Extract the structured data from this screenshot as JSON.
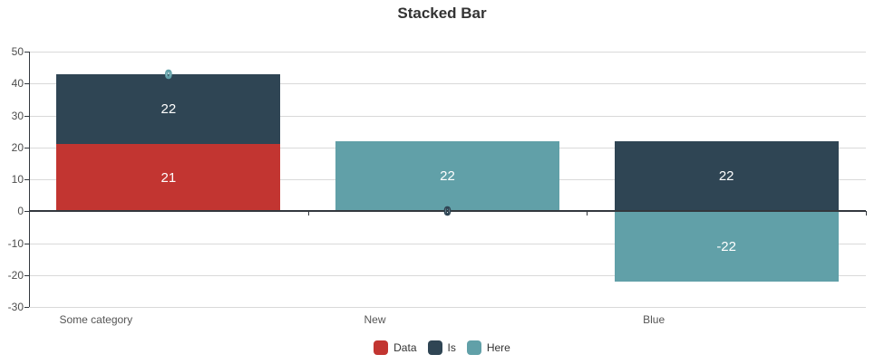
{
  "title": "Stacked Bar",
  "chart_data": {
    "type": "bar",
    "stacked": true,
    "title": "Stacked Bar",
    "categories": [
      "Some category",
      "New",
      "Blue"
    ],
    "series": [
      {
        "name": "Data",
        "color": "#c23531",
        "values": [
          21,
          0,
          0
        ]
      },
      {
        "name": "Is",
        "color": "#2f4554",
        "values": [
          22,
          0,
          22
        ]
      },
      {
        "name": "Here",
        "color": "#61a0a8",
        "values": [
          0,
          22,
          -22
        ]
      }
    ],
    "segment_labels": [
      [
        "21",
        "22",
        ""
      ],
      [
        "",
        "",
        "22"
      ],
      [
        "",
        "22",
        "-22"
      ]
    ],
    "zero_value_labels": [
      {
        "category_index": 0,
        "series": "Here",
        "text": "0",
        "stack_position": 43
      },
      {
        "category_index": 1,
        "series": "Is",
        "text": "0",
        "stack_position": 0
      }
    ],
    "y_axis": {
      "min": -30,
      "max": 50,
      "tick_step": 10,
      "tick_labels": [
        "50",
        "40",
        "30",
        "20",
        "10",
        "0",
        "-10",
        "-20",
        "-30"
      ]
    },
    "xlabel": "",
    "ylabel": "",
    "grid": true,
    "legend_position": "bottom",
    "legend": [
      "Data",
      "Is",
      "Here"
    ]
  },
  "colors": {
    "red": "#c23531",
    "navy": "#2f4554",
    "teal": "#61a0a8",
    "grid": "#d9d9d9",
    "axis": "#33383e",
    "title_text": "#333333",
    "axis_label_text": "#4d4d4d",
    "bar_label_text": "#ffffff",
    "background": "#ffffff"
  }
}
